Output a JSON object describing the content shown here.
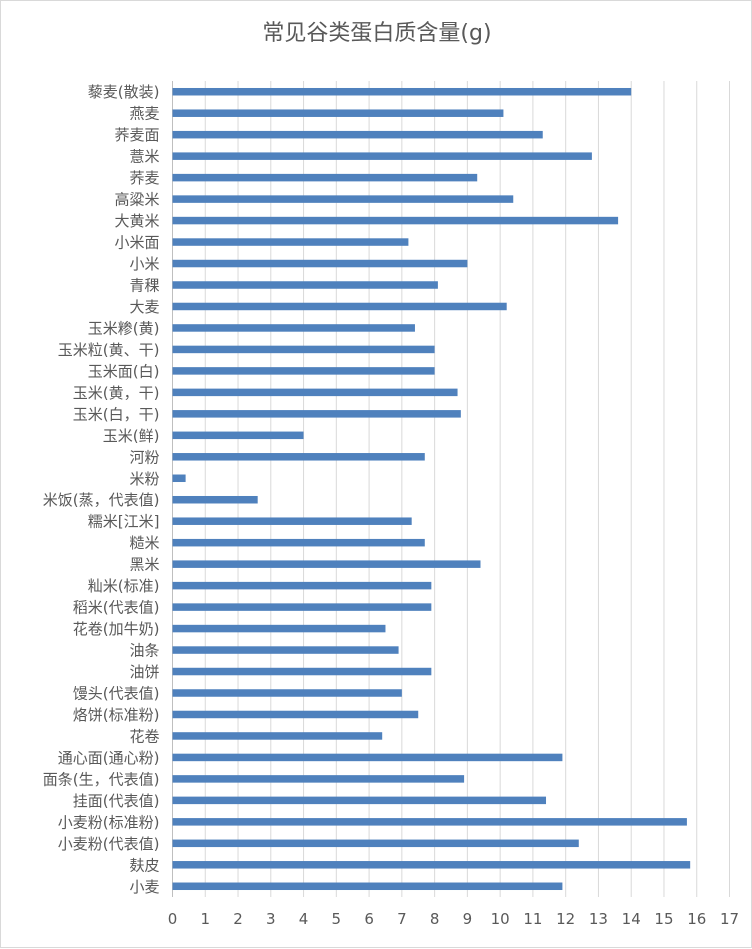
{
  "chart_data": {
    "type": "bar",
    "orientation": "horizontal",
    "title": "常见谷类蛋白质含量(g)",
    "xlabel": "",
    "ylabel": "",
    "xlim": [
      0,
      17
    ],
    "xticks": [
      0,
      1,
      2,
      3,
      4,
      5,
      6,
      7,
      8,
      9,
      10,
      11,
      12,
      13,
      14,
      15,
      16,
      17
    ],
    "grid": "vertical",
    "bar_color": "#4F81BD",
    "categories": [
      "藜麦(散装)",
      "燕麦",
      "荞麦面",
      "薏米",
      "荞麦",
      "高粱米",
      "大黄米",
      "小米面",
      "小米",
      "青稞",
      "大麦",
      "玉米糁(黄)",
      "玉米粒(黄、干)",
      "玉米面(白)",
      "玉米(黄，干)",
      "玉米(白，干)",
      "玉米(鲜)",
      "河粉",
      "米粉",
      "米饭(蒸，代表值)",
      "糯米[江米]",
      "糙米",
      "黑米",
      "籼米(标准)",
      "稻米(代表值)",
      "花卷(加牛奶)",
      "油条",
      "油饼",
      "馒头(代表值)",
      "烙饼(标准粉)",
      "花卷",
      "通心面(通心粉)",
      "面条(生，代表值)",
      "挂面(代表值)",
      "小麦粉(标准粉)",
      "小麦粉(代表值)",
      "麸皮",
      "小麦"
    ],
    "values": [
      14.0,
      10.1,
      11.3,
      12.8,
      9.3,
      10.4,
      13.6,
      7.2,
      9.0,
      8.1,
      10.2,
      7.4,
      8.0,
      8.0,
      8.7,
      8.8,
      4.0,
      7.7,
      0.4,
      2.6,
      7.3,
      7.7,
      9.4,
      7.9,
      7.9,
      6.5,
      6.9,
      7.9,
      7.0,
      7.5,
      6.4,
      11.9,
      8.9,
      11.4,
      15.7,
      12.4,
      15.8,
      11.9
    ]
  }
}
